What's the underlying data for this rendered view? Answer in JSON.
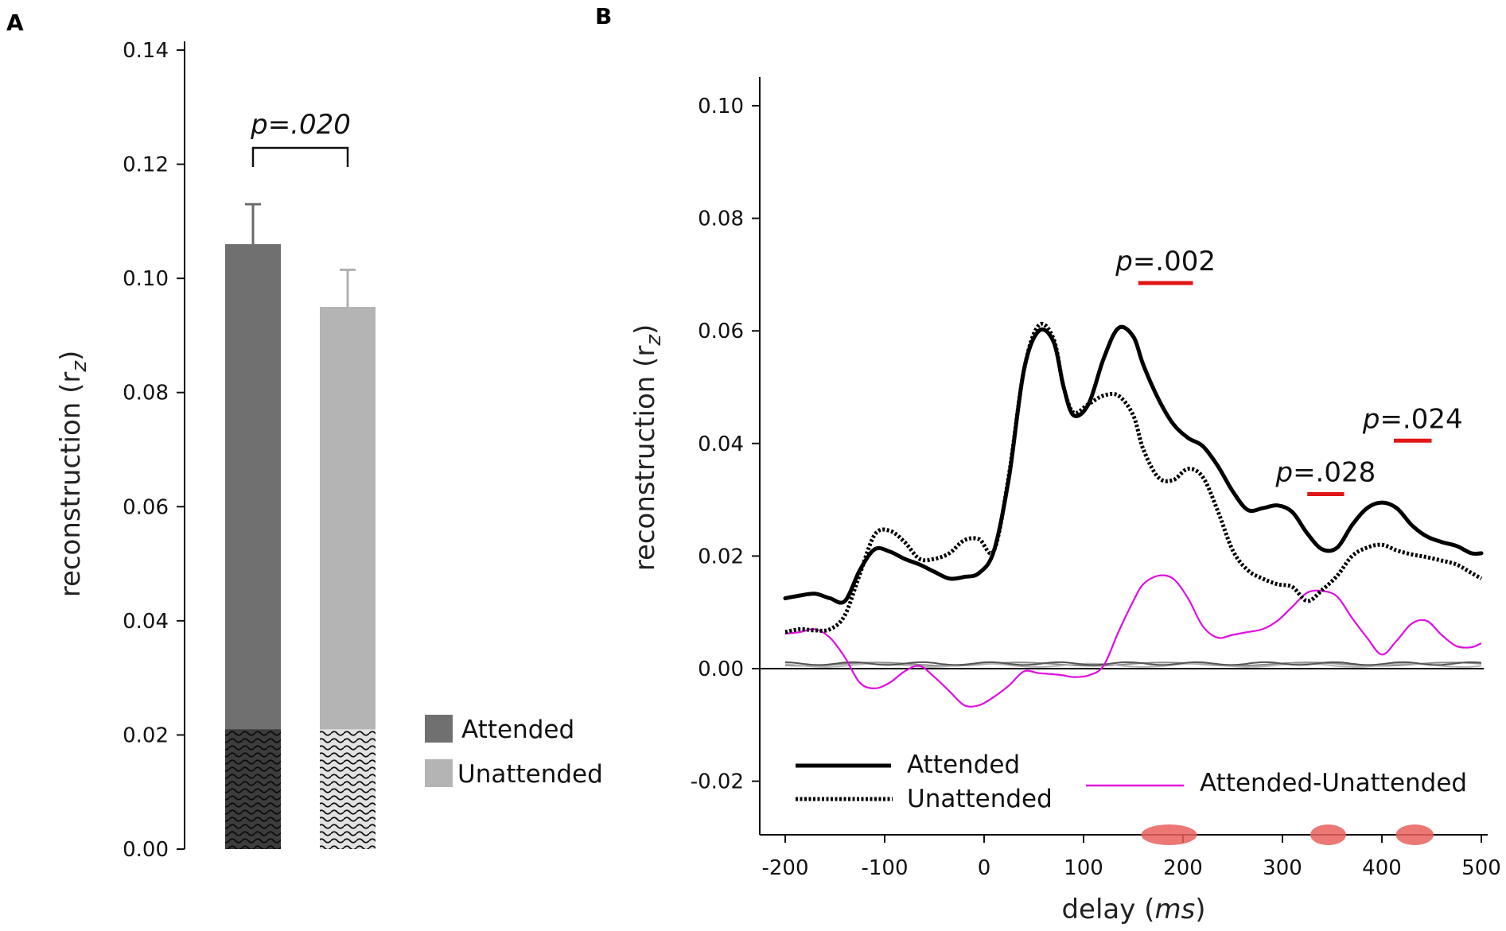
{
  "chart_data": [
    {
      "panel": "A",
      "type": "bar",
      "ylabel": "reconstruction (r",
      "ylabel_sub": "z",
      "ylabel_close": ")",
      "ylim": [
        0,
        0.14
      ],
      "yticks": [
        "0.00",
        "0.02",
        "0.04",
        "0.06",
        "0.08",
        "0.10",
        "0.12",
        "0.14"
      ],
      "categories": [
        "Attended",
        "Unattended"
      ],
      "values": [
        0.106,
        0.095
      ],
      "errors": [
        0.007,
        0.0065
      ],
      "chance_level": 0.021,
      "colors": [
        "#707070",
        "#b4b4b4"
      ],
      "annotation": "p=.020",
      "legend": [
        "Attended",
        "Unattended"
      ]
    },
    {
      "panel": "B",
      "type": "line",
      "xlabel": "delay (",
      "xlabel_unit": "ms",
      "xlabel_close": ")",
      "ylabel": "reconstruction (r",
      "ylabel_sub": "z",
      "ylabel_close": ")",
      "xlim": [
        -225,
        505
      ],
      "ylim": [
        -0.03,
        0.105
      ],
      "xticks": [
        "-200",
        "-100",
        "0",
        "100",
        "200",
        "300",
        "400",
        "500"
      ],
      "yticks": [
        "-0.02",
        "0.00",
        "0.02",
        "0.04",
        "0.06",
        "0.08",
        "0.10"
      ],
      "series": [
        {
          "name": "Attended",
          "style": "solid-thick",
          "color": "#000000",
          "x": [
            -200,
            -185,
            -170,
            -155,
            -140,
            -125,
            -110,
            -95,
            -80,
            -65,
            -50,
            -35,
            -20,
            -5,
            10,
            25,
            40,
            55,
            70,
            80,
            90,
            105,
            120,
            135,
            150,
            160,
            175,
            190,
            205,
            220,
            235,
            250,
            265,
            280,
            295,
            310,
            325,
            340,
            355,
            370,
            385,
            400,
            415,
            430,
            445,
            460,
            475,
            490,
            500
          ],
          "values": [
            0.0125,
            0.013,
            0.0133,
            0.0125,
            0.012,
            0.0175,
            0.0212,
            0.0208,
            0.0195,
            0.0185,
            0.0172,
            0.016,
            0.0163,
            0.017,
            0.021,
            0.034,
            0.053,
            0.06,
            0.058,
            0.05,
            0.045,
            0.047,
            0.055,
            0.0605,
            0.059,
            0.054,
            0.048,
            0.0435,
            0.041,
            0.0395,
            0.036,
            0.0315,
            0.0282,
            0.0285,
            0.029,
            0.0278,
            0.024,
            0.0212,
            0.0215,
            0.0255,
            0.0285,
            0.0295,
            0.0285,
            0.0255,
            0.0235,
            0.0225,
            0.0218,
            0.0205,
            0.0205
          ]
        },
        {
          "name": "Unattended",
          "style": "dotted-thick",
          "color": "#000000",
          "x": [
            -200,
            -185,
            -170,
            -155,
            -140,
            -125,
            -110,
            -95,
            -80,
            -65,
            -50,
            -35,
            -20,
            -5,
            10,
            25,
            40,
            55,
            70,
            80,
            90,
            105,
            120,
            135,
            150,
            160,
            175,
            190,
            205,
            220,
            235,
            250,
            265,
            280,
            295,
            310,
            325,
            340,
            355,
            370,
            385,
            400,
            415,
            430,
            445,
            460,
            475,
            490,
            500
          ],
          "values": [
            0.0065,
            0.007,
            0.0068,
            0.007,
            0.0095,
            0.0168,
            0.0238,
            0.0245,
            0.0225,
            0.0195,
            0.0195,
            0.0205,
            0.0228,
            0.023,
            0.021,
            0.0345,
            0.053,
            0.061,
            0.0585,
            0.05,
            0.0455,
            0.047,
            0.0485,
            0.0485,
            0.045,
            0.039,
            0.034,
            0.0335,
            0.0355,
            0.034,
            0.028,
            0.021,
            0.0175,
            0.016,
            0.015,
            0.0145,
            0.012,
            0.014,
            0.0165,
            0.02,
            0.0215,
            0.022,
            0.021,
            0.0203,
            0.0198,
            0.0192,
            0.0185,
            0.017,
            0.016
          ]
        },
        {
          "name": "Attended-Unattended",
          "style": "thin",
          "color": "#e00ee0",
          "x": [
            -200,
            -185,
            -170,
            -155,
            -140,
            -125,
            -110,
            -95,
            -80,
            -65,
            -50,
            -35,
            -20,
            -5,
            10,
            25,
            40,
            55,
            70,
            80,
            90,
            105,
            120,
            135,
            150,
            160,
            175,
            190,
            205,
            220,
            235,
            250,
            265,
            280,
            295,
            310,
            325,
            340,
            355,
            370,
            385,
            400,
            415,
            430,
            445,
            460,
            475,
            490,
            500
          ],
          "values": [
            0.0062,
            0.0065,
            0.007,
            0.0055,
            0.002,
            -0.0025,
            -0.0035,
            -0.0025,
            -0.0005,
            0.0005,
            -0.0015,
            -0.004,
            -0.0065,
            -0.0065,
            -0.005,
            -0.003,
            -0.0005,
            -0.0008,
            -0.001,
            -0.0012,
            -0.0015,
            -0.0012,
            0.0005,
            0.0065,
            0.012,
            0.015,
            0.0165,
            0.016,
            0.0125,
            0.0075,
            0.0055,
            0.006,
            0.0065,
            0.007,
            0.0085,
            0.011,
            0.0135,
            0.0138,
            0.0128,
            0.009,
            0.0055,
            0.0025,
            0.005,
            0.008,
            0.0085,
            0.006,
            0.004,
            0.0038,
            0.0045
          ]
        },
        {
          "name": "chance-level",
          "style": "gray-band",
          "color": "#888888",
          "x": [
            -200,
            500
          ],
          "values": [
            0.0008,
            0.0008
          ]
        }
      ],
      "significance": [
        {
          "label_p": "p",
          "label_val": "=.002",
          "x_start": 155,
          "x_end": 210,
          "bar_y": 0.0685
        },
        {
          "label_p": "p",
          "label_val": "=.028",
          "x_start": 325,
          "x_end": 362,
          "bar_y": 0.031
        },
        {
          "label_p": "p",
          "label_val": "=.024",
          "x_start": 412,
          "x_end": 450,
          "bar_y": 0.0405
        }
      ],
      "significant_windows": [
        {
          "x_start": 158,
          "x_end": 214
        },
        {
          "x_start": 328,
          "x_end": 364
        },
        {
          "x_start": 414,
          "x_end": 452
        }
      ],
      "legend": [
        "Attended",
        "Unattended",
        "Attended-Unattended"
      ]
    }
  ],
  "panels": {
    "a_label": "A",
    "b_label": "B"
  }
}
